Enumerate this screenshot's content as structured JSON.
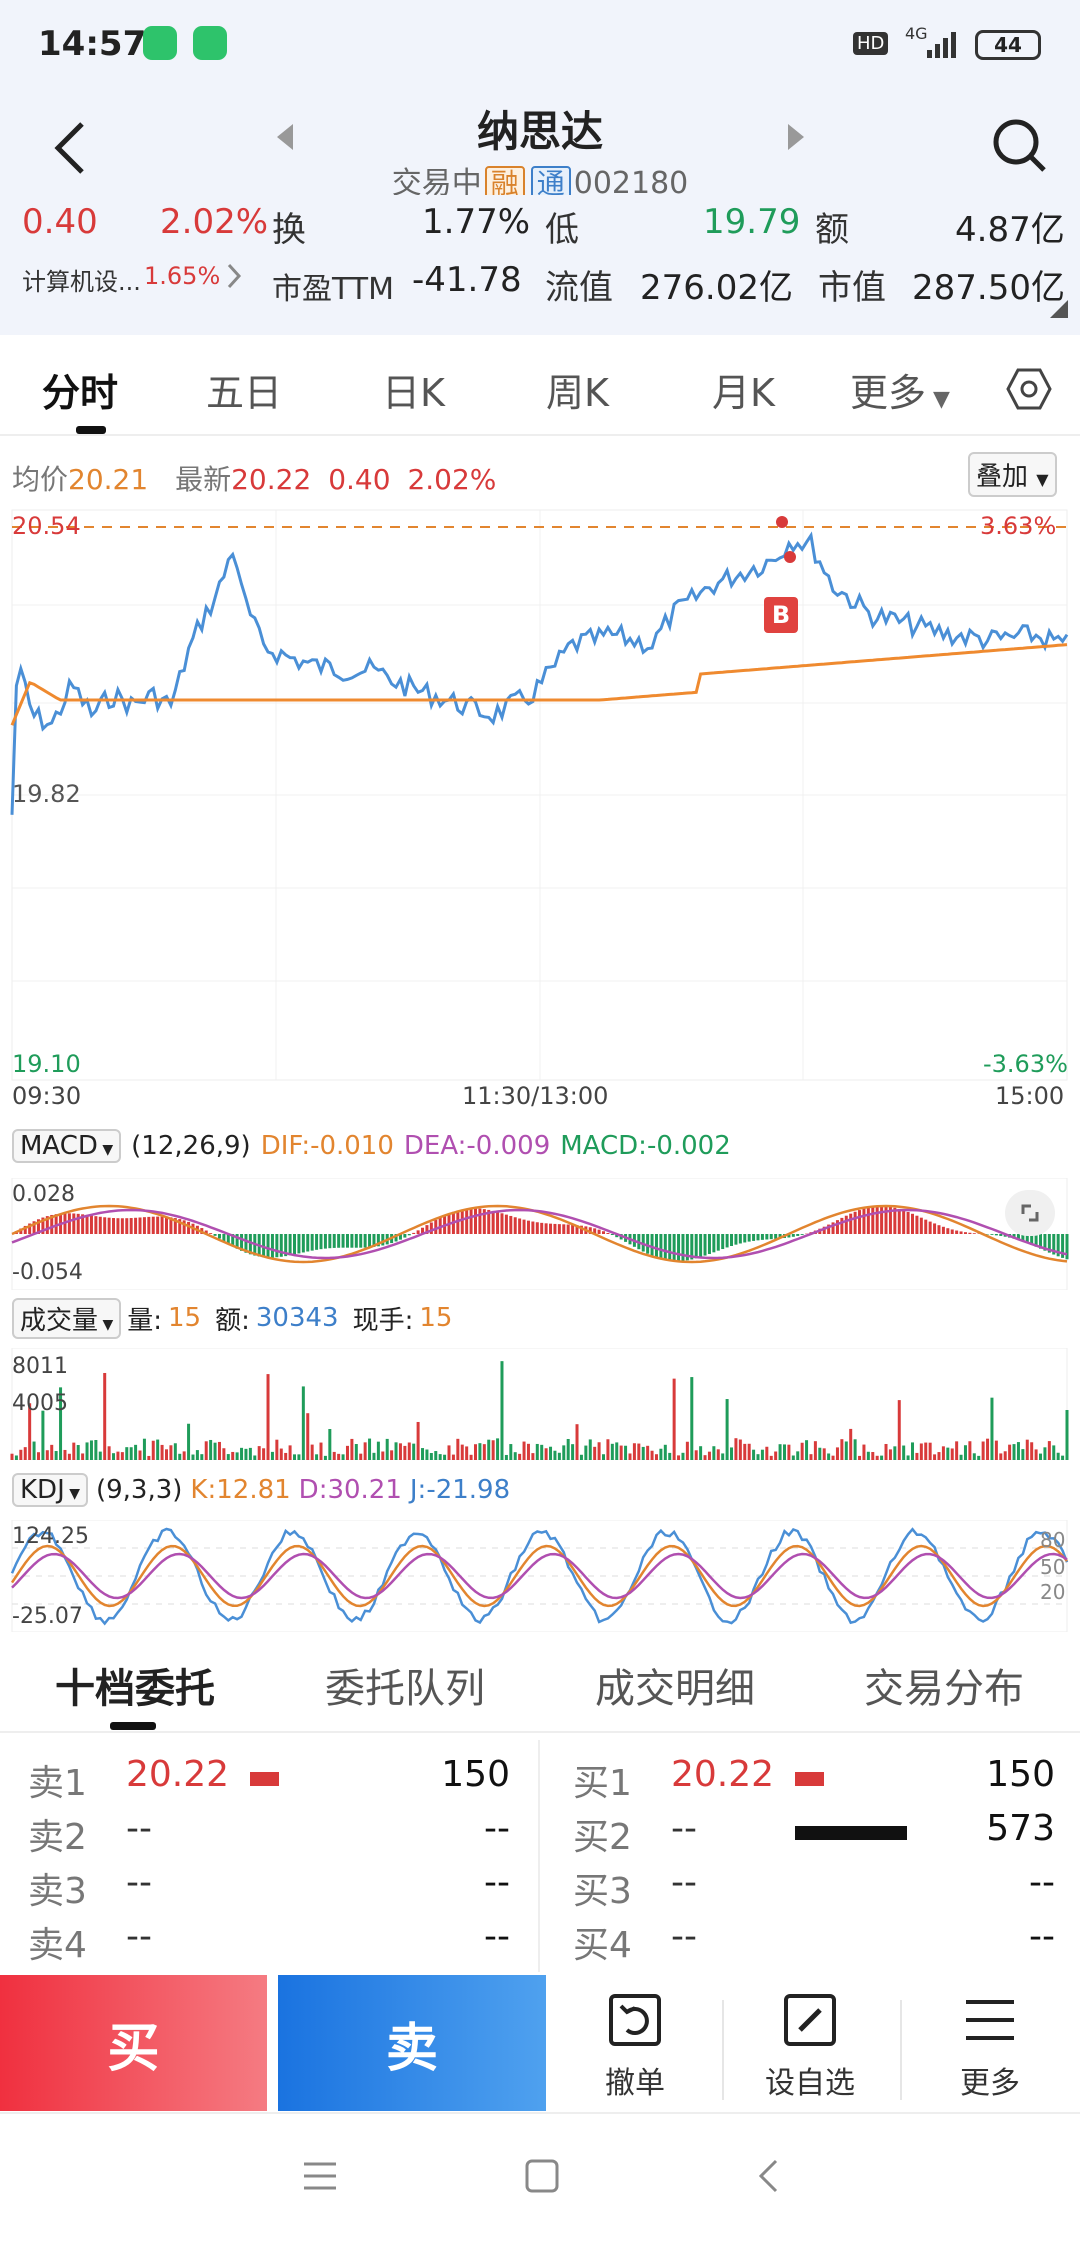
{
  "status_bar": {
    "time": "14:57",
    "network": "4G",
    "battery": "44",
    "hd": "HD"
  },
  "header": {
    "title": "纳思达",
    "exchange": "交易中",
    "tag_rong": "融",
    "tag_tong": "通",
    "code": "002180"
  },
  "quote": {
    "change": "0.40",
    "change_pct": "2.02%",
    "turnover_label": "换",
    "turnover": "1.77%",
    "low_label": "低",
    "low": "19.79",
    "amount_label": "额",
    "amount": "4.87亿",
    "sector": "计算机设...",
    "sector_pct": "1.65%",
    "pe_label": "市盈TTM",
    "pe": "-41.78",
    "float_label": "流值",
    "float_value": "276.02亿",
    "mcap_label": "市值",
    "mcap": "287.50亿"
  },
  "tabs": [
    {
      "label": "分时"
    },
    {
      "label": "五日"
    },
    {
      "label": "日K"
    },
    {
      "label": "周K"
    },
    {
      "label": "月K"
    },
    {
      "label": "更多"
    }
  ],
  "intraday": {
    "avg_label": "均价",
    "avg": "20.21",
    "latest_label": "最新",
    "latest": "20.22",
    "chg": "0.40",
    "chg_pct": "2.02%",
    "overlay_label": "叠加",
    "price_high": "20.54",
    "price_mid": "19.82",
    "price_low": "19.10",
    "pct_high": "3.63%",
    "pct_low": "-3.63%",
    "time_start": "09:30",
    "time_mid": "11:30/13:00",
    "time_end": "15:00",
    "signal": "B"
  },
  "macd": {
    "label": "MACD",
    "params": "(12,26,9)",
    "dif": "DIF:-0.010",
    "dea": "DEA:-0.009",
    "macd": "MACD:-0.002",
    "top": "0.028",
    "bottom": "-0.054"
  },
  "volume": {
    "label": "成交量",
    "qty_label": "量:",
    "qty": "15",
    "amt_label": "额:",
    "amt": "30343",
    "hand_label": "现手:",
    "hand": "15",
    "top": "8011",
    "mid": "4005"
  },
  "kdj": {
    "label": "KDJ",
    "params": "(9,3,3)",
    "k": "K:12.81",
    "d": "D:30.21",
    "j": "J:-21.98",
    "top": "124.25",
    "bottom": "-25.07",
    "r80": "80",
    "r50": "50",
    "r20": "20"
  },
  "book_tabs": [
    {
      "label": "十档委托"
    },
    {
      "label": "委托队列"
    },
    {
      "label": "成交明细"
    },
    {
      "label": "交易分布"
    }
  ],
  "sell_orders": [
    {
      "label": "卖1",
      "price": "20.22",
      "vol": "150",
      "bar": 0.26
    },
    {
      "label": "卖2",
      "price": "--",
      "vol": "--",
      "bar": 0
    },
    {
      "label": "卖3",
      "price": "--",
      "vol": "--",
      "bar": 0
    },
    {
      "label": "卖4",
      "price": "--",
      "vol": "--",
      "bar": 0
    }
  ],
  "buy_orders": [
    {
      "label": "买1",
      "price": "20.22",
      "vol": "150",
      "bar": 0.26
    },
    {
      "label": "买2",
      "price": "--",
      "vol": "573",
      "bar": 1.0
    },
    {
      "label": "买3",
      "price": "--",
      "vol": "--",
      "bar": 0
    },
    {
      "label": "买4",
      "price": "--",
      "vol": "--",
      "bar": 0
    }
  ],
  "actions": {
    "buy": "买",
    "sell": "卖",
    "cancel": "撤单",
    "watch": "设自选",
    "more": "更多"
  },
  "colors": {
    "up": "#d83a3a",
    "down": "#1f9c5a",
    "price_line": "#4a8fd6",
    "avg_line": "#ef8a2f",
    "buy_btn": "#f0303f",
    "sell_btn": "#1a73e0"
  }
}
